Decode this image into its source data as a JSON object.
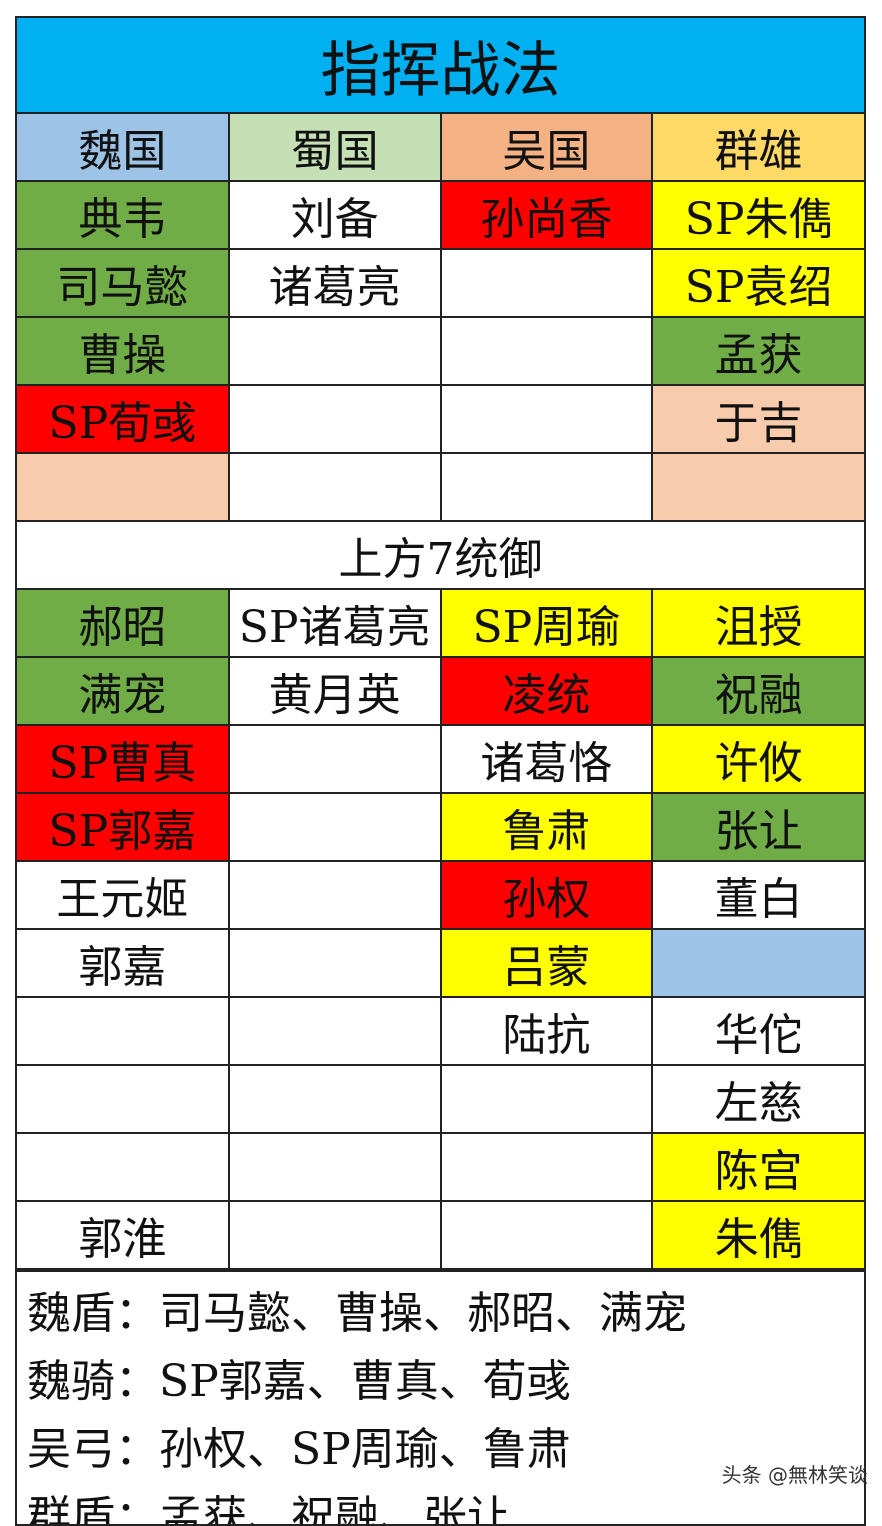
{
  "title": "指挥战法",
  "colors": {
    "title": "#00b0f0",
    "green": "#70ad47",
    "red": "#ff0000",
    "yellow": "#ffff00",
    "peach": "#f8cbad",
    "lightblue": "#9dc3e6",
    "white": "#ffffff"
  },
  "headers": [
    {
      "label": "魏国",
      "color": "#9dc3e6"
    },
    {
      "label": "蜀国",
      "color": "#c5e0b4"
    },
    {
      "label": "吴国",
      "color": "#f4b183"
    },
    {
      "label": "群雄",
      "color": "#ffd966"
    }
  ],
  "upper_rows": [
    [
      [
        "典韦",
        "green"
      ],
      [
        "刘备",
        "white"
      ],
      [
        "孙尚香",
        "red"
      ],
      [
        "SP朱儁",
        "yellow"
      ]
    ],
    [
      [
        "司马懿",
        "green"
      ],
      [
        "诸葛亮",
        "white"
      ],
      [
        "",
        "white"
      ],
      [
        "SP袁绍",
        "yellow"
      ]
    ],
    [
      [
        "曹操",
        "green"
      ],
      [
        "",
        "white"
      ],
      [
        "",
        "white"
      ],
      [
        "孟获",
        "green"
      ]
    ],
    [
      [
        "SP荀彧",
        "red"
      ],
      [
        "",
        "white"
      ],
      [
        "",
        "white"
      ],
      [
        "于吉",
        "peach"
      ]
    ],
    [
      [
        "",
        "peach"
      ],
      [
        "",
        "white"
      ],
      [
        "",
        "white"
      ],
      [
        "",
        "peach"
      ]
    ]
  ],
  "section_label": "上方7统御",
  "lower_rows": [
    [
      [
        "郝昭",
        "green"
      ],
      [
        "SP诸葛亮",
        "white"
      ],
      [
        "SP周瑜",
        "yellow"
      ],
      [
        "沮授",
        "yellow"
      ]
    ],
    [
      [
        "满宠",
        "green"
      ],
      [
        "黄月英",
        "white"
      ],
      [
        "凌统",
        "red"
      ],
      [
        "祝融",
        "green"
      ]
    ],
    [
      [
        "SP曹真",
        "red"
      ],
      [
        "",
        "white"
      ],
      [
        "诸葛恪",
        "white"
      ],
      [
        "许攸",
        "yellow"
      ]
    ],
    [
      [
        "SP郭嘉",
        "red"
      ],
      [
        "",
        "white"
      ],
      [
        "鲁肃",
        "yellow"
      ],
      [
        "张让",
        "green"
      ]
    ],
    [
      [
        "王元姬",
        "white"
      ],
      [
        "",
        "white"
      ],
      [
        "孙权",
        "red"
      ],
      [
        "董白",
        "white"
      ]
    ],
    [
      [
        "郭嘉",
        "white"
      ],
      [
        "",
        "white"
      ],
      [
        "吕蒙",
        "yellow"
      ],
      [
        "",
        "lightblue"
      ]
    ],
    [
      [
        "",
        "white"
      ],
      [
        "",
        "white"
      ],
      [
        "陆抗",
        "white"
      ],
      [
        "华佗",
        "white"
      ]
    ],
    [
      [
        "",
        "white"
      ],
      [
        "",
        "white"
      ],
      [
        "",
        "white"
      ],
      [
        "左慈",
        "white"
      ]
    ],
    [
      [
        "",
        "white"
      ],
      [
        "",
        "white"
      ],
      [
        "",
        "white"
      ],
      [
        "陈宫",
        "yellow"
      ]
    ],
    [
      [
        "郭淮",
        "white"
      ],
      [
        "",
        "white"
      ],
      [
        "",
        "white"
      ],
      [
        "朱儁",
        "yellow"
      ]
    ]
  ],
  "notes": [
    "魏盾：司马懿、曹操、郝昭、满宠",
    "魏骑：SP郭嘉、曹真、荀彧",
    "吴弓：孙权、SP周瑜、鲁肃",
    "群盾：孟获、祝融、张让"
  ],
  "watermark": "头条 @無林笑谈"
}
